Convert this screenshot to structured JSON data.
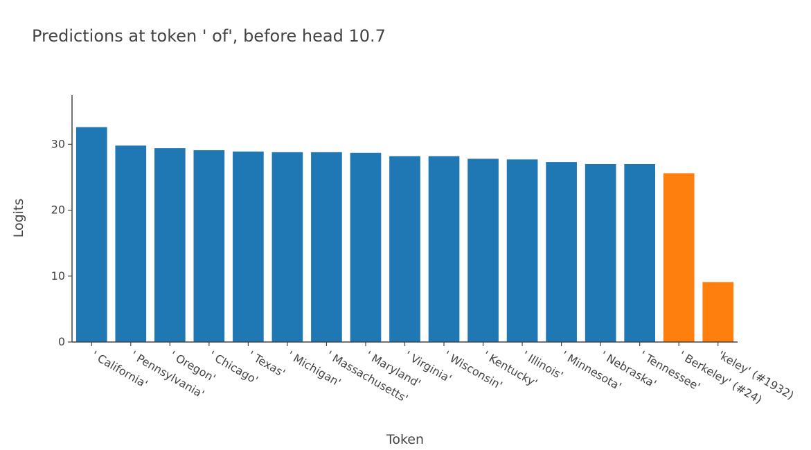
{
  "chart_data": {
    "type": "bar",
    "title": "Predictions at token ' of', before head 10.7",
    "xlabel": "Token",
    "ylabel": "Logits",
    "ylim": [
      0,
      37.5
    ],
    "yticks": [
      0,
      10,
      20,
      30
    ],
    "grid": false,
    "legend": "none",
    "colors": {
      "default": "#1f77b4",
      "highlight": "#ff7f0e",
      "axis": "#444444",
      "text": "#444444"
    },
    "categories": [
      "' California'",
      "' Pennsylvania'",
      "' Oregon'",
      "' Chicago'",
      "' Texas'",
      "' Michigan'",
      "' Massachusetts'",
      "' Maryland'",
      "' Virginia'",
      "' Wisconsin'",
      "' Kentucky'",
      "' Illinois'",
      "' Minnesota'",
      "' Nebraska'",
      "' Tennessee'",
      "' Berkeley' (#24)",
      "'keley' (#1932)"
    ],
    "values": [
      32.6,
      29.8,
      29.4,
      29.1,
      28.9,
      28.8,
      28.8,
      28.7,
      28.2,
      28.2,
      27.8,
      27.7,
      27.3,
      27.0,
      27.0,
      25.6,
      9.1
    ],
    "highlighted": [
      false,
      false,
      false,
      false,
      false,
      false,
      false,
      false,
      false,
      false,
      false,
      false,
      false,
      false,
      false,
      true,
      true
    ]
  }
}
